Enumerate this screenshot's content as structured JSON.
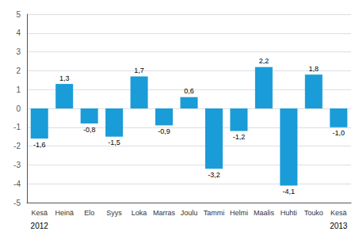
{
  "chart_data": {
    "type": "bar",
    "categories": [
      "Kesä",
      "Heinä",
      "Elo",
      "Syys",
      "Loka",
      "Marras",
      "Joulu",
      "Tammi",
      "Helmi",
      "Maalis",
      "Huhti",
      "Touko",
      "Kesä"
    ],
    "values": [
      -1.6,
      1.3,
      -0.8,
      -1.5,
      1.7,
      -0.9,
      0.6,
      -3.2,
      -1.2,
      2.2,
      -4.1,
      1.8,
      -1.0
    ],
    "value_labels": [
      "-1,6",
      "1,3",
      "-0,8",
      "-1,5",
      "1,7",
      "-0,9",
      "0,6",
      "-3,2",
      "-1,2",
      "2,2",
      "-4,1",
      "1,8",
      "-1,0"
    ],
    "data_labels": true,
    "color": "#1a9cd8",
    "ylim": [
      -5,
      5
    ],
    "yticks": [
      -5,
      -4,
      -3,
      -2,
      -1,
      0,
      1,
      2,
      3,
      4,
      5
    ],
    "grid": true,
    "annotations": [
      {
        "text": "2012",
        "x": 0
      },
      {
        "text": "2013",
        "x": 12
      }
    ]
  }
}
